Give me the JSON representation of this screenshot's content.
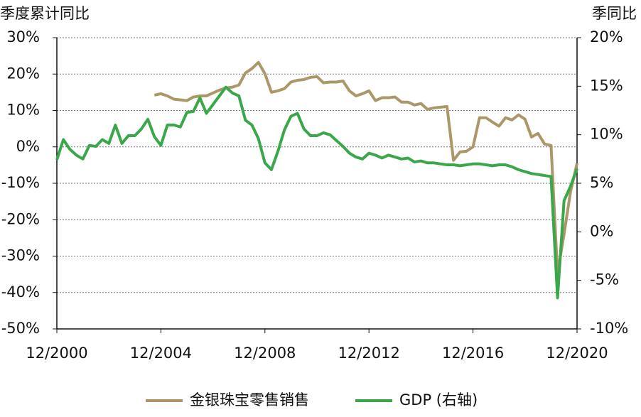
{
  "chart_data": {
    "type": "line",
    "y_title": "季度累计同比",
    "y2_title": "季同比",
    "x": [
      "2000-12",
      "2001-03",
      "2001-06",
      "2001-09",
      "2001-12",
      "2002-03",
      "2002-06",
      "2002-09",
      "2002-12",
      "2003-03",
      "2003-06",
      "2003-09",
      "2003-12",
      "2004-03",
      "2004-06",
      "2004-09",
      "2004-12",
      "2005-03",
      "2005-06",
      "2005-09",
      "2005-12",
      "2006-03",
      "2006-06",
      "2006-09",
      "2006-12",
      "2007-03",
      "2007-06",
      "2007-09",
      "2007-12",
      "2008-03",
      "2008-06",
      "2008-09",
      "2008-12",
      "2009-03",
      "2009-06",
      "2009-09",
      "2009-12",
      "2010-03",
      "2010-06",
      "2010-09",
      "2010-12",
      "2011-03",
      "2011-06",
      "2011-09",
      "2011-12",
      "2012-03",
      "2012-06",
      "2012-09",
      "2012-12",
      "2013-03",
      "2013-06",
      "2013-09",
      "2013-12",
      "2014-03",
      "2014-06",
      "2014-09",
      "2014-12",
      "2015-03",
      "2015-06",
      "2015-09",
      "2015-12",
      "2016-03",
      "2016-06",
      "2016-09",
      "2016-12",
      "2017-03",
      "2017-06",
      "2017-09",
      "2017-12",
      "2018-03",
      "2018-06",
      "2018-09",
      "2018-12",
      "2019-03",
      "2019-06",
      "2019-09",
      "2019-12",
      "2020-03",
      "2020-06",
      "2020-09",
      "2020-12"
    ],
    "series": [
      {
        "name": "金银珠宝零售销售",
        "color": "#ac9768",
        "values": [
          null,
          null,
          null,
          null,
          null,
          null,
          null,
          null,
          null,
          null,
          null,
          null,
          null,
          null,
          null,
          14.2,
          14.6,
          14.0,
          13.1,
          12.9,
          12.7,
          13.7,
          14.0,
          14.0,
          14.8,
          15.6,
          16.2,
          16.4,
          17.0,
          20.3,
          21.5,
          23.2,
          20.1,
          15.0,
          15.4,
          16.0,
          17.8,
          18.3,
          18.5,
          19.1,
          19.3,
          17.6,
          17.8,
          17.8,
          18.1,
          15.4,
          14.0,
          14.6,
          15.4,
          12.7,
          13.5,
          13.5,
          13.7,
          12.3,
          12.3,
          11.5,
          11.9,
          10.3,
          10.7,
          10.9,
          11.1,
          -3.7,
          -1.4,
          -1.2,
          0.0,
          8.0,
          8.0,
          6.8,
          5.7,
          8.0,
          7.4,
          8.8,
          7.6,
          2.7,
          3.7,
          0.8,
          0.4,
          -34.7,
          -24.0,
          -12.3,
          -4.5
        ]
      },
      {
        "name": "GDP (右轴)",
        "color": "#3aa84a",
        "axis": "y2",
        "values": [
          7.4,
          9.5,
          8.5,
          7.9,
          7.5,
          8.9,
          8.8,
          9.5,
          9.1,
          11.0,
          9.1,
          9.9,
          9.9,
          10.6,
          11.6,
          9.8,
          8.9,
          11.0,
          11.0,
          10.8,
          12.3,
          12.4,
          13.8,
          12.2,
          13.1,
          14.0,
          14.9,
          14.3,
          14.0,
          11.5,
          11.0,
          9.6,
          7.1,
          6.4,
          8.3,
          10.5,
          11.9,
          12.2,
          10.6,
          9.9,
          9.9,
          10.2,
          10.0,
          9.4,
          8.8,
          8.1,
          7.7,
          7.5,
          8.1,
          7.9,
          7.6,
          7.9,
          7.7,
          7.5,
          7.6,
          7.2,
          7.3,
          7.1,
          7.1,
          7.0,
          6.9,
          6.9,
          6.8,
          6.9,
          7.0,
          7.0,
          6.9,
          6.8,
          6.9,
          6.9,
          6.7,
          6.4,
          6.2,
          6.0,
          5.9,
          5.8,
          5.7,
          -6.8,
          3.2,
          4.7,
          6.5
        ]
      }
    ],
    "xlim": [
      "2000-12",
      "2020-12"
    ],
    "xticks": [
      {
        "value": "2000-12",
        "label": "12/2000"
      },
      {
        "value": "2004-12",
        "label": "12/2004"
      },
      {
        "value": "2008-12",
        "label": "12/2008"
      },
      {
        "value": "2012-12",
        "label": "12/2012"
      },
      {
        "value": "2016-12",
        "label": "12/2016"
      },
      {
        "value": "2020-12",
        "label": "12/2020"
      }
    ],
    "ylim": [
      -50,
      30
    ],
    "yticks": [
      {
        "value": -50,
        "label": "-50%"
      },
      {
        "value": -40,
        "label": "-40%"
      },
      {
        "value": -30,
        "label": "-30%"
      },
      {
        "value": -20,
        "label": "-20%"
      },
      {
        "value": -10,
        "label": "-10%"
      },
      {
        "value": 0,
        "label": "0%"
      },
      {
        "value": 10,
        "label": "10%"
      },
      {
        "value": 20,
        "label": "20%"
      },
      {
        "value": 30,
        "label": "30%"
      }
    ],
    "y2lim": [
      -10,
      20
    ],
    "y2ticks": [
      {
        "value": -10,
        "label": "-10%"
      },
      {
        "value": -5,
        "label": "-5%"
      },
      {
        "value": 0,
        "label": "0%"
      },
      {
        "value": 5,
        "label": "5%"
      },
      {
        "value": 10,
        "label": "10%"
      },
      {
        "value": 15,
        "label": "15%"
      },
      {
        "value": 20,
        "label": "20%"
      }
    ],
    "grid": true,
    "legend": "bottom"
  }
}
